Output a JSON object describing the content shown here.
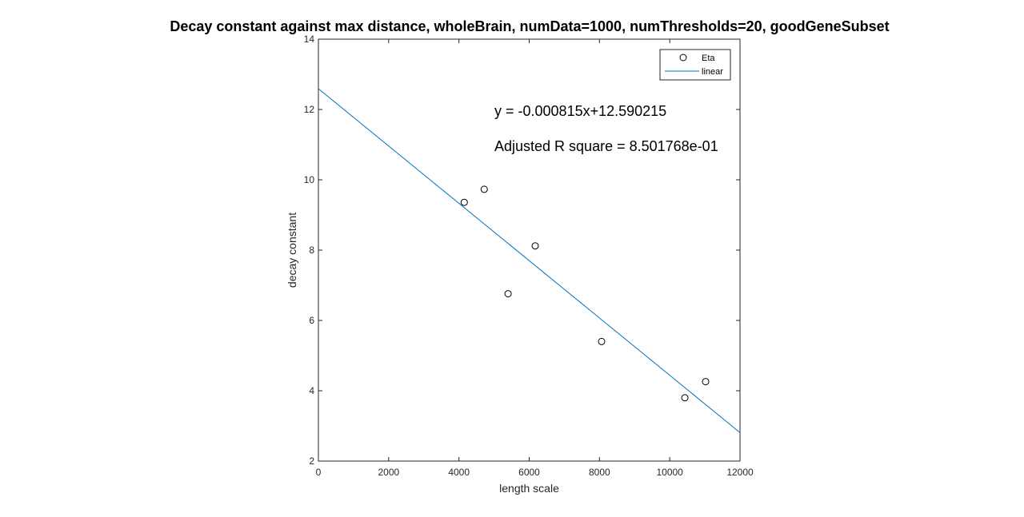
{
  "chart_data": {
    "type": "scatter",
    "title": "Decay constant against max distance, wholeBrain, numData=1000, numThresholds=20, goodGeneSubset",
    "xlabel": "length scale",
    "ylabel": "decay constant",
    "xlim": [
      0,
      12000
    ],
    "ylim": [
      2,
      14
    ],
    "x_ticks": [
      0,
      2000,
      4000,
      6000,
      8000,
      10000,
      12000
    ],
    "y_ticks": [
      2,
      4,
      6,
      8,
      10,
      12,
      14
    ],
    "grid": false,
    "legend_position": "top-right",
    "series": [
      {
        "name": "Eta",
        "kind": "scatter",
        "marker": "circle",
        "color": "#000000",
        "x": [
          4150,
          4720,
          5400,
          6170,
          8060,
          10430,
          11020
        ],
        "y": [
          9.36,
          9.73,
          6.76,
          8.12,
          5.4,
          3.8,
          4.26
        ]
      },
      {
        "name": "linear",
        "kind": "line",
        "color": "#0072BD",
        "slope": -0.000815,
        "intercept": 12.590215,
        "x": [
          0,
          12000
        ],
        "y": [
          12.590215,
          2.810215
        ]
      }
    ],
    "annotations": [
      "y = -0.000815x+12.590215",
      "Adjusted R square = 8.501768e-01"
    ]
  }
}
